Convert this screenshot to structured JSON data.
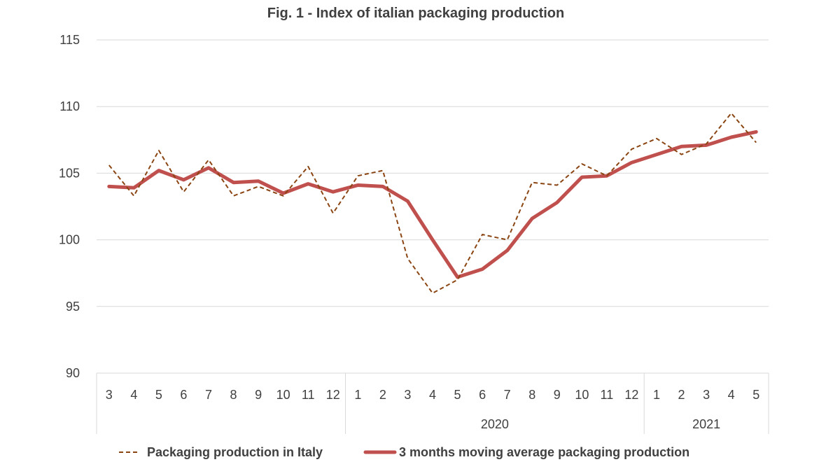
{
  "chart_data": {
    "type": "line",
    "title": "Fig. 1 - Index of italian packaging production",
    "ylim": [
      90,
      115
    ],
    "yticks": [
      90,
      95,
      100,
      105,
      110,
      115
    ],
    "grid": true,
    "month_labels": [
      "3",
      "4",
      "5",
      "6",
      "7",
      "8",
      "9",
      "10",
      "11",
      "12",
      "1",
      "2",
      "3",
      "4",
      "5",
      "6",
      "7",
      "8",
      "9",
      "10",
      "11",
      "12",
      "1",
      "2",
      "3",
      "4",
      "5"
    ],
    "year_groups": [
      {
        "label": "",
        "start": 0,
        "end": 9
      },
      {
        "label": "2020",
        "start": 10,
        "end": 21
      },
      {
        "label": "2021",
        "start": 22,
        "end": 26
      }
    ],
    "legend_position": "bottom",
    "series": [
      {
        "name": "Packaging production in Italy",
        "color": "#8B4513",
        "style": "dashed",
        "values": [
          105.6,
          103.3,
          106.7,
          103.6,
          106.0,
          103.3,
          104.0,
          103.3,
          105.5,
          102.0,
          104.8,
          105.2,
          98.6,
          96.0,
          97.0,
          100.4,
          100.0,
          104.3,
          104.1,
          105.7,
          104.8,
          106.8,
          107.6,
          106.4,
          107.2,
          109.5,
          107.3
        ]
      },
      {
        "name": "3 months moving average packaging production",
        "color": "#C0504D",
        "style": "solid",
        "values": [
          104.0,
          103.9,
          105.2,
          104.5,
          105.4,
          104.3,
          104.4,
          103.5,
          104.2,
          103.6,
          104.1,
          104.0,
          102.9,
          100.0,
          97.2,
          97.8,
          99.2,
          101.6,
          102.8,
          104.7,
          104.8,
          105.8,
          106.4,
          107.0,
          107.1,
          107.7,
          108.1
        ]
      }
    ]
  }
}
